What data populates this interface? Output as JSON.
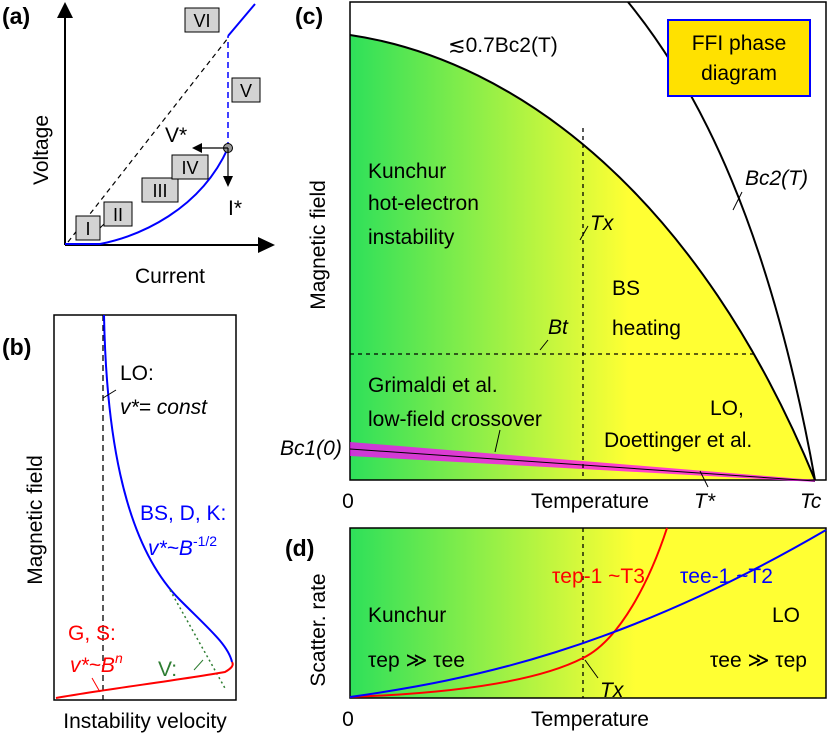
{
  "panel_a": {
    "label": "(a)",
    "y_axis": "Voltage",
    "x_axis": "Current",
    "regimes": [
      "I",
      "II",
      "III",
      "IV",
      "V",
      "VI"
    ],
    "v_star": "V*",
    "i_star": "I*",
    "colors": {
      "curve": "#0000ff",
      "dashed": "#000000"
    }
  },
  "panel_b": {
    "label": "(b)",
    "y_axis": "Magnetic field",
    "x_axis": "Instability velocity",
    "lo_title": "LO:",
    "lo_formula": "v*= const",
    "bs_title": "BS, D, K:",
    "bs_formula": "v*~B",
    "bs_exponent": "-1/2",
    "gs_title": "G, S:",
    "gs_formula": "v*~B",
    "gs_exponent": "n",
    "v_label": "V:",
    "colors": {
      "bs": "#0000ff",
      "gs": "#ff0000",
      "v": "#2e7d32"
    }
  },
  "panel_c": {
    "label": "(c)",
    "y_axis": "Magnetic field",
    "x_axis": "Temperature",
    "origin": "0",
    "t_star": "T*",
    "t_c": "Tc",
    "title_box": [
      "FFI phase",
      "diagram"
    ],
    "upper_curve_label": "≲0.7Bc2(T)",
    "bc2_label": "Bc2(T)",
    "tx_label": "Tx",
    "bt_label": "Bt",
    "bc1_label": "Bc1(0)",
    "kunchur": [
      "Kunchur",
      "hot-electron",
      "instability"
    ],
    "bs": [
      "BS",
      "heating"
    ],
    "grimaldi": [
      "Grimaldi et al.",
      "low-field crossover"
    ],
    "lo": [
      "LO,",
      "Doettinger et al."
    ],
    "colors": {
      "green": "#2ee05a",
      "yellow": "#ffff33",
      "box_fill": "#ffe100",
      "box_stroke": "#0000ff",
      "band": "#ff00ff"
    }
  },
  "panel_d": {
    "label": "(d)",
    "y_axis": "Scatter. rate",
    "x_axis": "Temperature",
    "origin": "0",
    "ep_label": "τep-1 ~T3",
    "ee_label": "τee-1 ~T2",
    "kunchur_title": "Kunchur",
    "kunchur_rel": "τep ≫ τee",
    "lo_title": "LO",
    "lo_rel": "τee ≫ τep",
    "tx_label": "Tx",
    "colors": {
      "ep": "#ff0000",
      "ee": "#0000ff"
    }
  }
}
